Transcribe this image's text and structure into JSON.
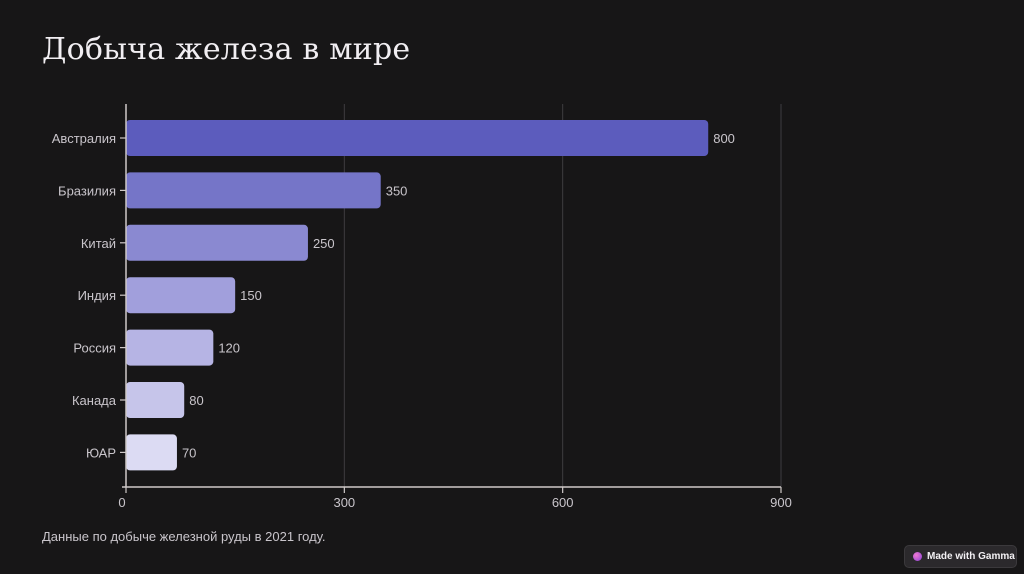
{
  "page": {
    "title": "Добыча железа в мире",
    "caption": "Данные по добыче железной руды в 2021 году."
  },
  "badge": {
    "label": "Made with Gamma",
    "icon": "gamma-logo-icon"
  },
  "chart_data": {
    "type": "bar",
    "orientation": "horizontal",
    "title": "",
    "xlabel": "",
    "ylabel": "",
    "categories": [
      "Австралия",
      "Бразилия",
      "Китай",
      "Индия",
      "Россия",
      "Канада",
      "ЮАР"
    ],
    "values": [
      800,
      350,
      250,
      150,
      120,
      80,
      70
    ],
    "data_labels": [
      "800",
      "350",
      "250",
      "150",
      "120",
      "80",
      "70"
    ],
    "xlim": [
      0,
      900
    ],
    "x_ticks": [
      0,
      300,
      600,
      900
    ],
    "x_tick_labels": [
      "0",
      "300",
      "600",
      "900"
    ],
    "grid": "vertical",
    "legend": "none",
    "bar_colors": [
      "#5c5cbd",
      "#7575c8",
      "#8a89d1",
      "#a19fdc",
      "#b6b4e4",
      "#c6c5ea",
      "#dcdbf3"
    ],
    "label_color": "#c9c5cb",
    "gridline_color": "#3e3c40",
    "axis_color": "#cfc9c8"
  }
}
